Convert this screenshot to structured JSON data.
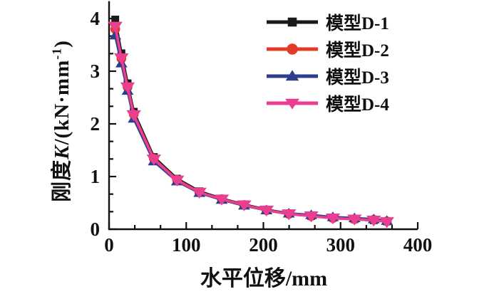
{
  "figure": {
    "background": "#ffffff",
    "text_color": "#111111",
    "axis_color": "#111111"
  },
  "axes": {
    "x_title": "水平位移/mm",
    "y_title_parts": {
      "prefix": "刚度",
      "var": "K",
      "mid": "/(kN·mm",
      "sup": "-1",
      "suffix": ")"
    }
  },
  "legend": {
    "position": "top-right",
    "items": [
      {
        "id": "d1",
        "label": "模型D-1",
        "color": "#1a1a1a",
        "marker": "square"
      },
      {
        "id": "d2",
        "label": "模型D-2",
        "color": "#e23b28",
        "marker": "circle"
      },
      {
        "id": "d3",
        "label": "模型D-3",
        "color": "#2e3e8c",
        "marker": "triangle-up"
      },
      {
        "id": "d4",
        "label": "模型D-4",
        "color": "#ec3e90",
        "marker": "triangle-down"
      }
    ]
  },
  "chart_data": {
    "type": "line",
    "title": "",
    "xlabel": "水平位移/mm",
    "ylabel": "刚度K/(kN·mm⁻¹)",
    "xlim": [
      0,
      400
    ],
    "ylim": [
      0,
      4.33
    ],
    "x_ticks": [
      0,
      100,
      200,
      300,
      400
    ],
    "y_ticks": [
      0,
      1,
      2,
      3,
      4
    ],
    "minor_tick_divisions": 3,
    "grid": false,
    "legend_position": "top-right",
    "x": [
      8,
      16,
      24,
      32,
      58,
      88,
      117,
      146,
      175,
      204,
      233,
      262,
      290,
      318,
      343,
      360
    ],
    "series": [
      {
        "id": "d1",
        "name": "模型D-1",
        "color": "#1a1a1a",
        "marker": "square",
        "values": [
          3.98,
          3.34,
          2.77,
          2.23,
          1.37,
          0.96,
          0.72,
          0.58,
          0.47,
          0.37,
          0.3,
          0.25,
          0.22,
          0.19,
          0.17,
          0.15
        ]
      },
      {
        "id": "d2",
        "name": "模型D-2",
        "color": "#e23b28",
        "marker": "circle",
        "values": [
          3.8,
          3.24,
          2.7,
          2.18,
          1.34,
          0.94,
          0.7,
          0.57,
          0.46,
          0.36,
          0.29,
          0.25,
          0.21,
          0.19,
          0.18,
          0.15
        ]
      },
      {
        "id": "d3",
        "name": "模型D-3",
        "color": "#2e3e8c",
        "marker": "triangle-up",
        "values": [
          3.68,
          3.15,
          2.63,
          2.1,
          1.29,
          0.91,
          0.69,
          0.56,
          0.45,
          0.36,
          0.3,
          0.27,
          0.23,
          0.21,
          0.19,
          0.16
        ]
      },
      {
        "id": "d4",
        "name": "模型D-4",
        "color": "#ec3e90",
        "marker": "triangle-down",
        "values": [
          3.85,
          3.25,
          2.7,
          2.17,
          1.33,
          0.93,
          0.7,
          0.57,
          0.46,
          0.36,
          0.29,
          0.25,
          0.21,
          0.19,
          0.17,
          0.14
        ]
      }
    ]
  }
}
